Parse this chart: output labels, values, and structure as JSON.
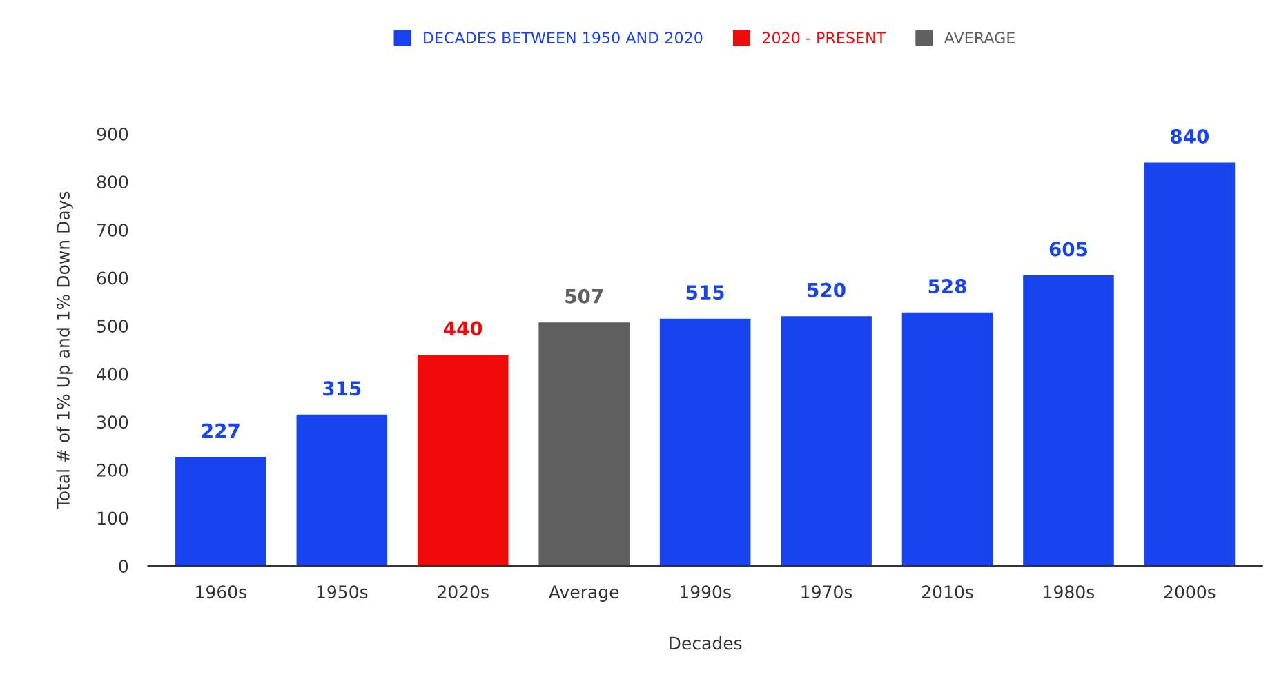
{
  "chart_data": {
    "type": "bar",
    "xlabel": "Decades",
    "ylabel": "Total # of 1% Up and 1% Down Days",
    "categories": [
      "1960s",
      "1950s",
      "2020s",
      "Average",
      "1990s",
      "1970s",
      "2010s",
      "1980s",
      "2000s"
    ],
    "series": [
      {
        "name": "DECADES BETWEEN 1950 AND 2020",
        "color": "#1a43f0",
        "values": [
          227,
          315,
          null,
          null,
          515,
          520,
          528,
          605,
          840
        ]
      },
      {
        "name": "2020 - PRESENT",
        "color": "#f00a0a",
        "values": [
          null,
          null,
          440,
          null,
          null,
          null,
          null,
          null,
          null
        ]
      },
      {
        "name": "AVERAGE",
        "color": "#5f5f5f",
        "values": [
          null,
          null,
          null,
          507,
          null,
          null,
          null,
          null,
          null
        ]
      }
    ],
    "ylim": [
      0,
      900
    ],
    "yticks": [
      0,
      100,
      200,
      300,
      400,
      500,
      600,
      700,
      800,
      900
    ],
    "data_labels": true,
    "legend": "top",
    "grid": false
  }
}
